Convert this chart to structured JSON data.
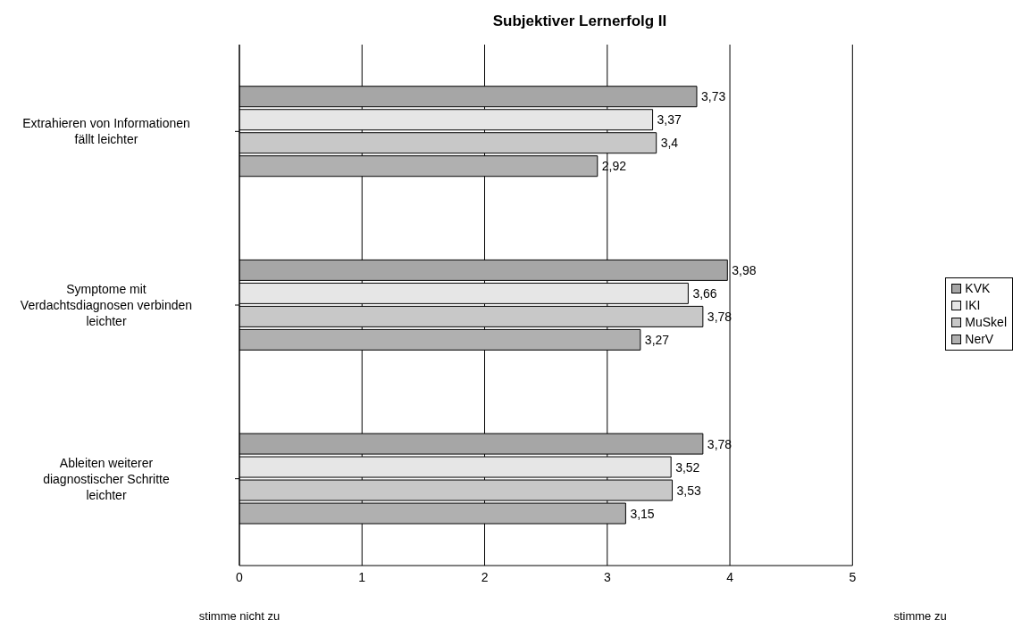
{
  "chart_data": {
    "type": "bar",
    "orientation": "horizontal",
    "title": "Subjektiver Lernerfolg II",
    "categories": [
      "Extrahieren von Informationen fällt leichter",
      "Symptome mit Verdachtsdiagnosen verbinden leichter",
      "Ableiten weiterer diagnostischer Schritte leichter"
    ],
    "series": [
      {
        "name": "KVK",
        "color": "#a6a6a6",
        "values": [
          3.73,
          3.98,
          3.78
        ],
        "value_labels": [
          "3,73",
          "3,98",
          "3,78"
        ]
      },
      {
        "name": "IKI",
        "color": "#e6e6e6",
        "values": [
          3.37,
          3.66,
          3.52
        ],
        "value_labels": [
          "3,37",
          "3,66",
          "3,52"
        ]
      },
      {
        "name": "MuSkel",
        "color": "#c8c8c8",
        "values": [
          3.4,
          3.78,
          3.53
        ],
        "value_labels": [
          "3,4",
          "3,78",
          "3,53"
        ]
      },
      {
        "name": "NerV",
        "color": "#b0b0b0",
        "values": [
          2.92,
          3.27,
          3.15
        ],
        "value_labels": [
          "2,92",
          "3,27",
          "3,15"
        ]
      }
    ],
    "xlim": [
      0,
      5
    ],
    "xticks": [
      0,
      1,
      2,
      3,
      4,
      5
    ],
    "grid": "x",
    "legend": "right",
    "annotations": [
      "stimme nicht zu",
      "stimme zu"
    ]
  }
}
